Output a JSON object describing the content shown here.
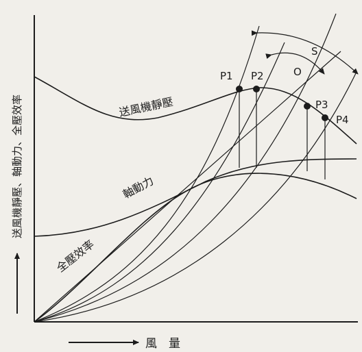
{
  "labels": {
    "y_axis": "送風機靜壓、軸動力、全壓效率",
    "x_axis": "風　量",
    "fan_static_pressure": "送風機靜壓",
    "shaft_power": "軸動力",
    "total_efficiency": "全壓效率",
    "region_s": "S",
    "region_o": "O"
  },
  "points": [
    {
      "label": "P1"
    },
    {
      "label": "P2"
    },
    {
      "label": "P3"
    },
    {
      "label": "P4"
    }
  ]
}
